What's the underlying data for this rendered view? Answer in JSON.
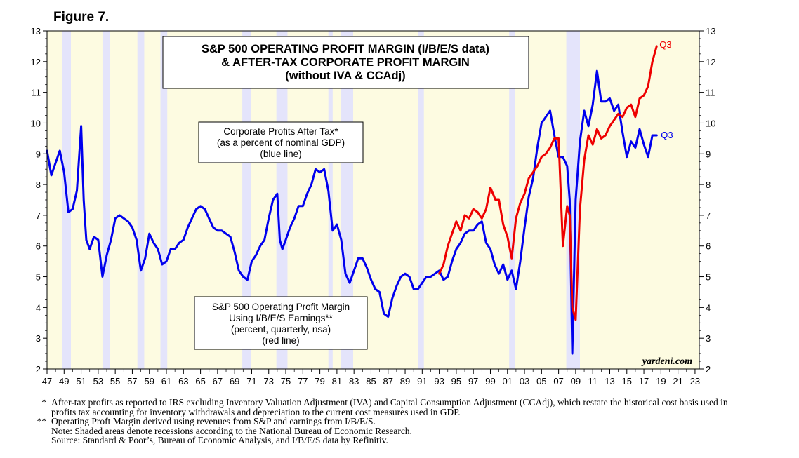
{
  "figure_label": "Figure 7.",
  "colors": {
    "background": "#fdfbe1",
    "recession": "#e4e4fb",
    "blue": "#0000ee",
    "red": "#ee0000"
  },
  "chart_data": {
    "type": "line",
    "title_lines": [
      "S&P 500 OPERATING PROFIT MARGIN (I/B/E/S data)",
      "& AFTER-TAX CORPORATE PROFIT MARGIN",
      "(without IVA & CCAdj)"
    ],
    "ylim": [
      2,
      13
    ],
    "xlim": [
      1947,
      2023.5
    ],
    "y_ticks": [
      2,
      3,
      4,
      5,
      6,
      7,
      8,
      9,
      10,
      11,
      12,
      13
    ],
    "x_tick_labels": [
      "47",
      "49",
      "51",
      "53",
      "55",
      "57",
      "59",
      "61",
      "63",
      "65",
      "67",
      "69",
      "71",
      "73",
      "75",
      "77",
      "79",
      "81",
      "83",
      "85",
      "87",
      "89",
      "91",
      "93",
      "95",
      "97",
      "99",
      "01",
      "03",
      "05",
      "07",
      "09",
      "11",
      "13",
      "15",
      "17",
      "19",
      "21",
      "23"
    ],
    "x_tick_years": [
      1947,
      1949,
      1951,
      1953,
      1955,
      1957,
      1959,
      1961,
      1963,
      1965,
      1967,
      1969,
      1971,
      1973,
      1975,
      1977,
      1979,
      1981,
      1983,
      1985,
      1987,
      1989,
      1991,
      1993,
      1995,
      1997,
      1999,
      2001,
      2003,
      2005,
      2007,
      2009,
      2011,
      2013,
      2015,
      2017,
      2019,
      2021,
      2023
    ],
    "recessions": [
      [
        1948.8,
        1949.8
      ],
      [
        1953.5,
        1954.4
      ],
      [
        1957.6,
        1958.4
      ],
      [
        1960.3,
        1961.1
      ],
      [
        1969.9,
        1970.9
      ],
      [
        1973.9,
        1975.2
      ],
      [
        1980.0,
        1980.5
      ],
      [
        1981.5,
        1982.9
      ],
      [
        1990.5,
        1991.2
      ],
      [
        2001.2,
        2001.9
      ],
      [
        2007.9,
        2009.5
      ]
    ],
    "series": [
      {
        "name": "Corporate Profits After Tax (percent of nominal GDP)",
        "color": "blue",
        "end_label": "Q3",
        "x": [
          1947,
          1947.5,
          1948,
          1948.5,
          1949,
          1949.5,
          1950,
          1950.5,
          1951,
          1951.3,
          1951.6,
          1952,
          1952.5,
          1953,
          1953.5,
          1954,
          1954.5,
          1955,
          1955.5,
          1956,
          1956.5,
          1957,
          1957.5,
          1958,
          1958.5,
          1959,
          1959.5,
          1960,
          1960.5,
          1961,
          1961.5,
          1962,
          1962.5,
          1963,
          1963.5,
          1964,
          1964.5,
          1965,
          1965.5,
          1966,
          1966.5,
          1967,
          1967.5,
          1968,
          1968.5,
          1969,
          1969.5,
          1970,
          1970.5,
          1971,
          1971.5,
          1972,
          1972.5,
          1973,
          1973.5,
          1974,
          1974.3,
          1974.6,
          1975,
          1975.5,
          1976,
          1976.5,
          1977,
          1977.5,
          1978,
          1978.5,
          1979,
          1979.5,
          1980,
          1980.5,
          1981,
          1981.5,
          1982,
          1982.5,
          1983,
          1983.5,
          1984,
          1984.5,
          1985,
          1985.5,
          1986,
          1986.5,
          1987,
          1987.5,
          1988,
          1988.5,
          1989,
          1989.5,
          1990,
          1990.5,
          1991,
          1991.5,
          1992,
          1992.5,
          1993,
          1993.5,
          1994,
          1994.5,
          1995,
          1995.5,
          1996,
          1996.5,
          1997,
          1997.5,
          1998,
          1998.5,
          1999,
          1999.5,
          2000,
          2000.5,
          2001,
          2001.5,
          2002,
          2002.5,
          2003,
          2003.5,
          2004,
          2004.5,
          2005,
          2005.5,
          2006,
          2006.5,
          2007,
          2007.5,
          2008,
          2008.3,
          2008.6,
          2009,
          2009.5,
          2010,
          2010.5,
          2011,
          2011.5,
          2012,
          2012.5,
          2013,
          2013.5,
          2014,
          2014.5,
          2015,
          2015.5,
          2016,
          2016.5,
          2017,
          2017.5,
          2018,
          2018.5
        ],
        "y": [
          9.1,
          8.3,
          8.7,
          9.1,
          8.4,
          7.1,
          7.2,
          7.8,
          9.9,
          7.5,
          6.2,
          5.9,
          6.3,
          6.2,
          5.0,
          5.7,
          6.2,
          6.9,
          7.0,
          6.9,
          6.8,
          6.6,
          6.2,
          5.2,
          5.6,
          6.4,
          6.1,
          5.9,
          5.4,
          5.5,
          5.9,
          5.9,
          6.1,
          6.2,
          6.6,
          6.9,
          7.2,
          7.3,
          7.2,
          6.9,
          6.6,
          6.5,
          6.5,
          6.4,
          6.3,
          5.8,
          5.2,
          5.0,
          4.9,
          5.5,
          5.7,
          6.0,
          6.2,
          6.9,
          7.5,
          7.7,
          6.2,
          5.9,
          6.2,
          6.6,
          6.9,
          7.3,
          7.3,
          7.7,
          8.0,
          8.5,
          8.4,
          8.5,
          7.8,
          6.5,
          6.7,
          6.2,
          5.1,
          4.8,
          5.2,
          5.6,
          5.6,
          5.3,
          4.9,
          4.6,
          4.5,
          3.8,
          3.7,
          4.3,
          4.7,
          5.0,
          5.1,
          5.0,
          4.6,
          4.6,
          4.8,
          5.0,
          5.0,
          5.1,
          5.2,
          4.9,
          5.0,
          5.5,
          5.9,
          6.1,
          6.4,
          6.5,
          6.5,
          6.7,
          6.8,
          6.1,
          5.9,
          5.4,
          5.1,
          5.4,
          4.9,
          5.2,
          4.6,
          5.5,
          6.6,
          7.6,
          8.2,
          9.2,
          10.0,
          10.2,
          10.4,
          9.6,
          8.9,
          8.9,
          8.6,
          7.5,
          2.5,
          7.5,
          9.4,
          10.4,
          9.9,
          10.6,
          11.7,
          10.7,
          10.7,
          10.8,
          10.4,
          10.6,
          9.7,
          8.9,
          9.4,
          9.2,
          9.8,
          9.3,
          8.9,
          9.6,
          9.6
        ]
      },
      {
        "name": "S&P 500 Operating Profit Margin (I/B/E/S)",
        "color": "red",
        "end_label": "Q3",
        "x": [
          1993,
          1993.5,
          1994,
          1994.5,
          1995,
          1995.5,
          1996,
          1996.5,
          1997,
          1997.5,
          1998,
          1998.5,
          1999,
          1999.3,
          1999.6,
          2000,
          2000.5,
          2001,
          2001.5,
          2002,
          2002.5,
          2003,
          2003.5,
          2004,
          2004.5,
          2005,
          2005.5,
          2006,
          2006.5,
          2007,
          2007.5,
          2008,
          2008.3,
          2008.6,
          2009,
          2009.5,
          2010,
          2010.5,
          2011,
          2011.5,
          2012,
          2012.5,
          2013,
          2013.5,
          2014,
          2014.5,
          2015,
          2015.5,
          2016,
          2016.5,
          2017,
          2017.5,
          2018,
          2018.5
        ],
        "y": [
          5.1,
          5.4,
          6.0,
          6.4,
          6.8,
          6.5,
          7.0,
          6.9,
          7.2,
          7.1,
          6.9,
          7.2,
          7.9,
          7.7,
          7.5,
          7.5,
          6.7,
          6.3,
          5.6,
          6.9,
          7.4,
          7.7,
          8.2,
          8.4,
          8.6,
          8.9,
          9.0,
          9.2,
          9.5,
          9.5,
          6.0,
          7.3,
          7.0,
          4.0,
          3.6,
          7.2,
          8.8,
          9.6,
          9.3,
          9.8,
          9.5,
          9.6,
          9.9,
          10.1,
          10.3,
          10.2,
          10.5,
          10.6,
          10.2,
          10.8,
          10.9,
          11.2,
          12.0,
          12.5
        ]
      }
    ]
  },
  "boxes": {
    "blue_lines": [
      "Corporate Profits After Tax*",
      "(as a percent of nominal GDP)",
      "(blue line)"
    ],
    "red_lines": [
      "S&P 500 Operating Profit Margin",
      "Using I/B/E/S Earnings**",
      "(percent, quarterly, nsa)",
      "(red line)"
    ],
    "watermark": "yardeni.com"
  },
  "notes": [
    {
      "mark": "*",
      "text": "After-tax profits as reported to IRS excluding Inventory Valuation Adjustment (IVA) and Capital Consumption Adjustment (CCAdj), which restate the historical cost basis used in profits tax accounting for inventory withdrawals and depreciation to the current cost measures used in GDP."
    },
    {
      "mark": "**",
      "text": "Operating Proft Margin derived using revenues from S&P and earnings from I/B/E/S."
    },
    {
      "mark": "",
      "text": "Note: Shaded areas denote recessions according to the National Bureau of Economic Research."
    },
    {
      "mark": "",
      "text": "Source: Standard & Poor’s, Bureau of Economic Analysis, and I/B/E/S data by Refinitiv."
    }
  ]
}
